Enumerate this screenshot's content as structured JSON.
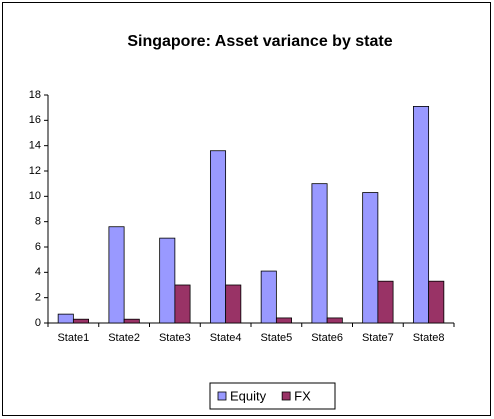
{
  "chart_data": {
    "type": "bar",
    "title": "Singapore: Asset variance by state",
    "categories": [
      "State1",
      "State2",
      "State3",
      "State4",
      "State5",
      "State6",
      "State7",
      "State8"
    ],
    "series": [
      {
        "name": "Equity",
        "color": "#9999ff",
        "values": [
          0.7,
          7.6,
          6.7,
          13.6,
          4.1,
          11.0,
          10.3,
          17.1
        ]
      },
      {
        "name": "FX",
        "color": "#993366",
        "values": [
          0.3,
          0.3,
          3.0,
          3.0,
          0.4,
          0.4,
          3.3,
          3.3
        ]
      }
    ],
    "ylim": [
      0,
      18
    ],
    "yticks": [
      0,
      2,
      4,
      6,
      8,
      10,
      12,
      14,
      16,
      18
    ],
    "grid": false,
    "legend": "bottom"
  }
}
